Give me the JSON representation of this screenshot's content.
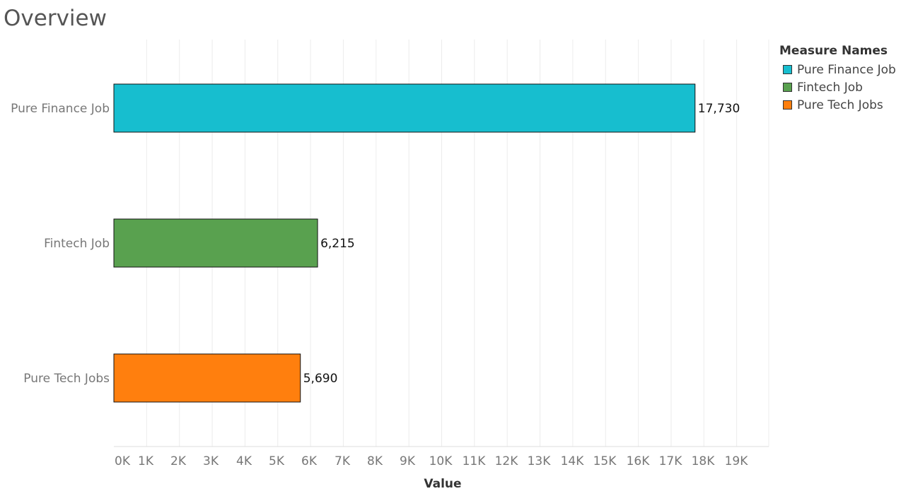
{
  "page_title": "Overview",
  "legend": {
    "title": "Measure Names",
    "items": [
      {
        "label": "Pure Finance Job",
        "color": "#17becf"
      },
      {
        "label": "Fintech Job",
        "color": "#59a14f"
      },
      {
        "label": "Pure Tech Jobs",
        "color": "#ff7f0e"
      }
    ]
  },
  "chart_data": {
    "type": "bar",
    "orientation": "horizontal",
    "categories": [
      "Pure Finance Job",
      "Fintech Job",
      "Pure Tech Jobs"
    ],
    "values": [
      17730,
      6215,
      5690
    ],
    "data_labels": [
      "17,730",
      "6,215",
      "5,690"
    ],
    "colors": [
      "#17becf",
      "#59a14f",
      "#ff7f0e"
    ],
    "xlabel": "Value",
    "ylabel": "",
    "xlim": [
      0,
      20000
    ],
    "xticks": [
      0,
      1000,
      2000,
      3000,
      4000,
      5000,
      6000,
      7000,
      8000,
      9000,
      10000,
      11000,
      12000,
      13000,
      14000,
      15000,
      16000,
      17000,
      18000,
      19000
    ],
    "xtick_labels": [
      "0K",
      "1K",
      "2K",
      "3K",
      "4K",
      "5K",
      "6K",
      "7K",
      "8K",
      "9K",
      "10K",
      "11K",
      "12K",
      "13K",
      "14K",
      "15K",
      "16K",
      "17K",
      "18K",
      "19K"
    ],
    "grid": true,
    "legend_position": "right"
  }
}
